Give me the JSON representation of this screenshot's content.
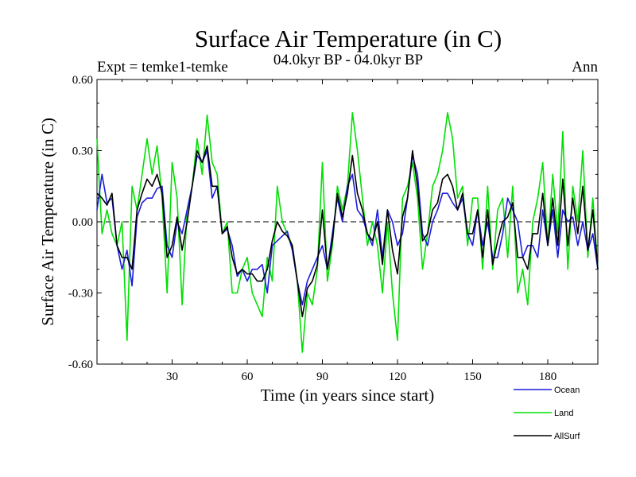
{
  "chart_data": {
    "type": "line",
    "title": "Surface Air Temperature (in C)",
    "subtitle_left": "Expt = temke1-temke",
    "subtitle_center": "04.0kyr BP - 04.0kyr BP",
    "subtitle_right": "Ann",
    "xlabel": "Time (in years since start)",
    "ylabel": "Surface Air Temperature (in C)",
    "xlim": [
      0,
      200
    ],
    "ylim": [
      -0.6,
      0.6
    ],
    "x_ticks": [
      30,
      60,
      90,
      120,
      150,
      180
    ],
    "y_ticks": [
      -0.6,
      -0.3,
      0.0,
      0.3,
      0.6
    ],
    "y_tick_labels": [
      "-0.60",
      "-0.30",
      "0.00",
      "0.30",
      "0.60"
    ],
    "zero_line": true,
    "grid": false,
    "legend_position": "bottom-right",
    "x": [
      0,
      2,
      4,
      6,
      8,
      10,
      12,
      14,
      16,
      18,
      20,
      22,
      24,
      26,
      28,
      30,
      32,
      34,
      36,
      38,
      40,
      42,
      44,
      46,
      48,
      50,
      52,
      54,
      56,
      58,
      60,
      62,
      64,
      66,
      68,
      70,
      72,
      74,
      76,
      78,
      80,
      82,
      84,
      86,
      88,
      90,
      92,
      94,
      96,
      98,
      100,
      102,
      104,
      106,
      108,
      110,
      112,
      114,
      116,
      118,
      120,
      122,
      124,
      126,
      128,
      130,
      132,
      134,
      136,
      138,
      140,
      142,
      144,
      146,
      148,
      150,
      152,
      154,
      156,
      158,
      160,
      162,
      164,
      166,
      168,
      170,
      172,
      174,
      176,
      178,
      180,
      182,
      184,
      186,
      188,
      190,
      192,
      194,
      196,
      198,
      200
    ],
    "series": [
      {
        "name": "Ocean",
        "color": "#1c1cdc",
        "values": [
          0.05,
          0.2,
          0.08,
          0.1,
          -0.1,
          -0.2,
          -0.12,
          -0.27,
          0.02,
          0.08,
          0.1,
          0.1,
          0.14,
          0.15,
          -0.1,
          -0.15,
          0.0,
          -0.05,
          0.05,
          0.15,
          0.28,
          0.25,
          0.3,
          0.1,
          0.15,
          -0.05,
          -0.03,
          -0.1,
          -0.23,
          -0.2,
          -0.25,
          -0.2,
          -0.2,
          -0.18,
          -0.3,
          -0.1,
          -0.08,
          -0.06,
          -0.04,
          -0.12,
          -0.25,
          -0.35,
          -0.25,
          -0.2,
          -0.15,
          -0.1,
          -0.2,
          -0.05,
          0.1,
          0.0,
          0.15,
          0.2,
          0.05,
          0.02,
          -0.05,
          -0.1,
          0.05,
          -0.15,
          0.05,
          0.0,
          -0.1,
          -0.05,
          0.1,
          0.28,
          0.2,
          -0.05,
          -0.1,
          0.0,
          0.05,
          0.12,
          0.12,
          0.08,
          0.05,
          0.1,
          -0.05,
          -0.1,
          0.05,
          -0.1,
          0.0,
          -0.15,
          -0.15,
          -0.05,
          0.1,
          0.05,
          0.0,
          -0.15,
          -0.1,
          -0.1,
          -0.15,
          0.05,
          -0.1,
          0.05,
          -0.15,
          0.05,
          0.0,
          0.02,
          -0.1,
          0.0,
          -0.12,
          -0.05,
          -0.2
        ]
      },
      {
        "name": "Land",
        "color": "#00e000",
        "values": [
          0.35,
          -0.05,
          0.05,
          -0.05,
          -0.1,
          0.0,
          -0.5,
          0.15,
          0.05,
          0.2,
          0.35,
          0.2,
          0.32,
          0.1,
          -0.3,
          0.25,
          0.1,
          -0.35,
          0.05,
          0.15,
          0.35,
          0.2,
          0.45,
          0.25,
          0.2,
          -0.05,
          0.0,
          -0.3,
          -0.3,
          -0.2,
          -0.15,
          -0.3,
          -0.35,
          -0.4,
          -0.15,
          -0.25,
          0.15,
          0.0,
          -0.05,
          -0.1,
          -0.25,
          -0.55,
          -0.3,
          -0.35,
          -0.2,
          0.25,
          -0.25,
          -0.1,
          0.15,
          0.05,
          0.15,
          0.46,
          0.3,
          0.1,
          -0.1,
          0.0,
          -0.1,
          -0.3,
          0.0,
          -0.3,
          -0.5,
          0.1,
          0.15,
          0.25,
          0.1,
          -0.2,
          -0.05,
          0.15,
          0.2,
          0.3,
          0.46,
          0.35,
          0.1,
          0.15,
          -0.1,
          0.1,
          0.1,
          -0.2,
          0.15,
          -0.2,
          0.05,
          0.1,
          -0.15,
          0.15,
          -0.3,
          -0.2,
          -0.35,
          0.0,
          0.1,
          0.25,
          -0.1,
          0.2,
          -0.05,
          0.38,
          -0.2,
          0.15,
          0.0,
          0.3,
          -0.15,
          0.1,
          -0.2
        ]
      },
      {
        "name": "AllSurf",
        "color": "#000000",
        "values": [
          0.12,
          0.1,
          0.07,
          0.12,
          -0.1,
          -0.15,
          -0.15,
          -0.2,
          0.05,
          0.12,
          0.18,
          0.15,
          0.2,
          0.12,
          -0.15,
          -0.1,
          0.02,
          -0.12,
          0.0,
          0.15,
          0.3,
          0.25,
          0.32,
          0.15,
          0.15,
          -0.05,
          -0.02,
          -0.15,
          -0.22,
          -0.2,
          -0.22,
          -0.22,
          -0.25,
          -0.25,
          -0.2,
          -0.08,
          0.0,
          -0.04,
          -0.06,
          -0.1,
          -0.25,
          -0.4,
          -0.28,
          -0.25,
          -0.18,
          0.05,
          -0.2,
          -0.08,
          0.12,
          0.02,
          0.12,
          0.28,
          0.12,
          0.05,
          -0.05,
          -0.08,
          0.0,
          -0.18,
          0.05,
          -0.12,
          -0.22,
          0.02,
          0.1,
          0.3,
          0.15,
          -0.08,
          -0.05,
          0.05,
          0.08,
          0.18,
          0.2,
          0.15,
          0.05,
          0.12,
          -0.05,
          -0.05,
          0.05,
          -0.15,
          0.05,
          -0.18,
          -0.08,
          0.0,
          0.02,
          0.08,
          -0.15,
          -0.15,
          -0.2,
          -0.05,
          -0.05,
          0.12,
          -0.1,
          0.1,
          -0.1,
          0.18,
          -0.1,
          0.1,
          -0.05,
          0.15,
          -0.12,
          0.05,
          -0.2
        ]
      }
    ]
  }
}
